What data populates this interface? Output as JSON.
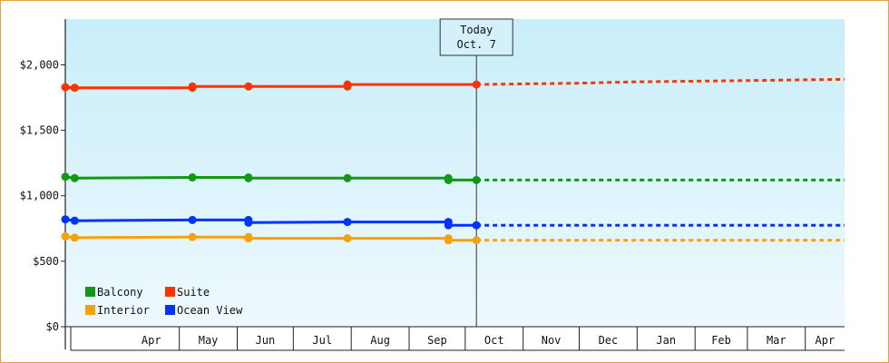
{
  "chart_data": {
    "type": "line",
    "title": "",
    "xlabel": "",
    "ylabel": "",
    "ylim": [
      0,
      2350
    ],
    "yticks": [
      0,
      500,
      1000,
      1500,
      2000
    ],
    "ytick_labels": [
      "$0",
      "$500",
      "$1,000",
      "$1,500",
      "$2,000"
    ],
    "xlim": [
      "2024-03-01",
      "2025-04-22"
    ],
    "month_ticks": [
      {
        "label": "Apr",
        "start": "2024-04-01",
        "end": "2024-05-01"
      },
      {
        "label": "May",
        "start": "2024-05-01",
        "end": "2024-06-01"
      },
      {
        "label": "Jun",
        "start": "2024-06-01",
        "end": "2024-07-01"
      },
      {
        "label": "Jul",
        "start": "2024-07-01",
        "end": "2024-08-01"
      },
      {
        "label": "Aug",
        "start": "2024-08-01",
        "end": "2024-09-01"
      },
      {
        "label": "Sep",
        "start": "2024-09-01",
        "end": "2024-10-01"
      },
      {
        "label": "Oct",
        "start": "2024-10-01",
        "end": "2024-11-01"
      },
      {
        "label": "Nov",
        "start": "2024-11-01",
        "end": "2024-12-01"
      },
      {
        "label": "Dec",
        "start": "2024-12-01",
        "end": "2025-01-01"
      },
      {
        "label": "Jan",
        "start": "2025-01-01",
        "end": "2025-02-01"
      },
      {
        "label": "Feb",
        "start": "2025-02-01",
        "end": "2025-03-01"
      },
      {
        "label": "Mar",
        "start": "2025-03-01",
        "end": "2025-04-01"
      },
      {
        "label": "Apr",
        "start": "2025-04-01",
        "end": "2025-04-22"
      }
    ],
    "today": {
      "label1": "Today",
      "label2": "Oct. 7",
      "date": "2024-10-07"
    },
    "legend_position": "bottom-left",
    "grid": false,
    "series": [
      {
        "name": "Balcony",
        "color": "#119911",
        "points": [
          {
            "x": "2024-03-01",
            "y": 1145
          },
          {
            "x": "2024-03-06",
            "y": 1135
          },
          {
            "x": "2024-05-08",
            "y": 1140
          },
          {
            "x": "2024-06-07",
            "y": 1140
          },
          {
            "x": "2024-06-07",
            "y": 1135
          },
          {
            "x": "2024-07-30",
            "y": 1135
          },
          {
            "x": "2024-09-22",
            "y": 1135
          },
          {
            "x": "2024-09-22",
            "y": 1120
          },
          {
            "x": "2024-10-07",
            "y": 1120
          }
        ],
        "forecast": [
          {
            "x": "2024-10-07",
            "y": 1120
          },
          {
            "x": "2025-04-22",
            "y": 1120
          }
        ]
      },
      {
        "name": "Suite",
        "color": "#ff3300",
        "points": [
          {
            "x": "2024-03-01",
            "y": 1830
          },
          {
            "x": "2024-03-06",
            "y": 1825
          },
          {
            "x": "2024-05-08",
            "y": 1825
          },
          {
            "x": "2024-05-08",
            "y": 1835
          },
          {
            "x": "2024-06-07",
            "y": 1835
          },
          {
            "x": "2024-07-30",
            "y": 1835
          },
          {
            "x": "2024-07-30",
            "y": 1850
          },
          {
            "x": "2024-10-07",
            "y": 1850
          }
        ],
        "forecast": [
          {
            "x": "2024-10-07",
            "y": 1850
          },
          {
            "x": "2024-11-30",
            "y": 1860
          },
          {
            "x": "2024-12-30",
            "y": 1870
          },
          {
            "x": "2025-02-28",
            "y": 1880
          },
          {
            "x": "2025-04-22",
            "y": 1890
          }
        ]
      },
      {
        "name": "Interior",
        "color": "#f7a10a",
        "points": [
          {
            "x": "2024-03-01",
            "y": 690
          },
          {
            "x": "2024-03-06",
            "y": 680
          },
          {
            "x": "2024-05-08",
            "y": 685
          },
          {
            "x": "2024-06-07",
            "y": 685
          },
          {
            "x": "2024-06-07",
            "y": 675
          },
          {
            "x": "2024-07-30",
            "y": 675
          },
          {
            "x": "2024-09-22",
            "y": 675
          },
          {
            "x": "2024-09-22",
            "y": 660
          },
          {
            "x": "2024-10-07",
            "y": 660
          }
        ],
        "forecast": [
          {
            "x": "2024-10-07",
            "y": 660
          },
          {
            "x": "2025-04-22",
            "y": 660
          }
        ]
      },
      {
        "name": "Ocean View",
        "color": "#0033ff",
        "points": [
          {
            "x": "2024-03-01",
            "y": 820
          },
          {
            "x": "2024-03-06",
            "y": 810
          },
          {
            "x": "2024-05-08",
            "y": 815
          },
          {
            "x": "2024-06-07",
            "y": 815
          },
          {
            "x": "2024-06-07",
            "y": 795
          },
          {
            "x": "2024-07-30",
            "y": 800
          },
          {
            "x": "2024-09-22",
            "y": 800
          },
          {
            "x": "2024-09-22",
            "y": 775
          },
          {
            "x": "2024-10-07",
            "y": 775
          }
        ],
        "forecast": [
          {
            "x": "2024-10-07",
            "y": 775
          },
          {
            "x": "2025-04-22",
            "y": 775
          }
        ]
      }
    ]
  }
}
